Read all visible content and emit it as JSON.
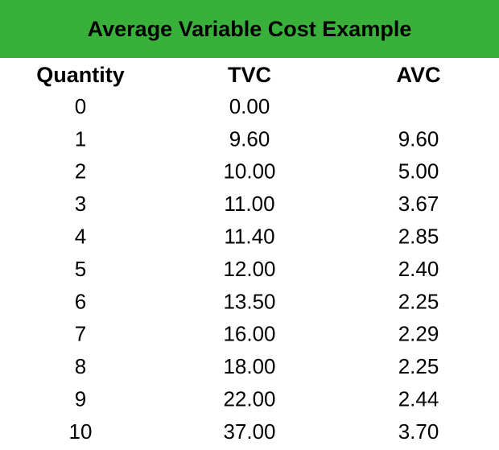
{
  "header": {
    "title": "Average Variable Cost Example"
  },
  "table": {
    "columns": [
      "Quantity",
      "TVC",
      "AVC"
    ],
    "rows": [
      [
        "0",
        "0.00"
      ],
      [
        "1",
        "9.60",
        "9.60"
      ],
      [
        "2",
        "10.00",
        "5.00"
      ],
      [
        "3",
        "11.00",
        "3.67"
      ],
      [
        "4",
        "11.40",
        "2.85"
      ],
      [
        "5",
        "12.00",
        "2.40"
      ],
      [
        "6",
        "13.50",
        "2.25"
      ],
      [
        "7",
        "16.00",
        "2.29"
      ],
      [
        "8",
        "18.00",
        "2.25"
      ],
      [
        "9",
        "22.00",
        "2.44"
      ],
      [
        "10",
        "37.00",
        "3.70"
      ]
    ]
  }
}
